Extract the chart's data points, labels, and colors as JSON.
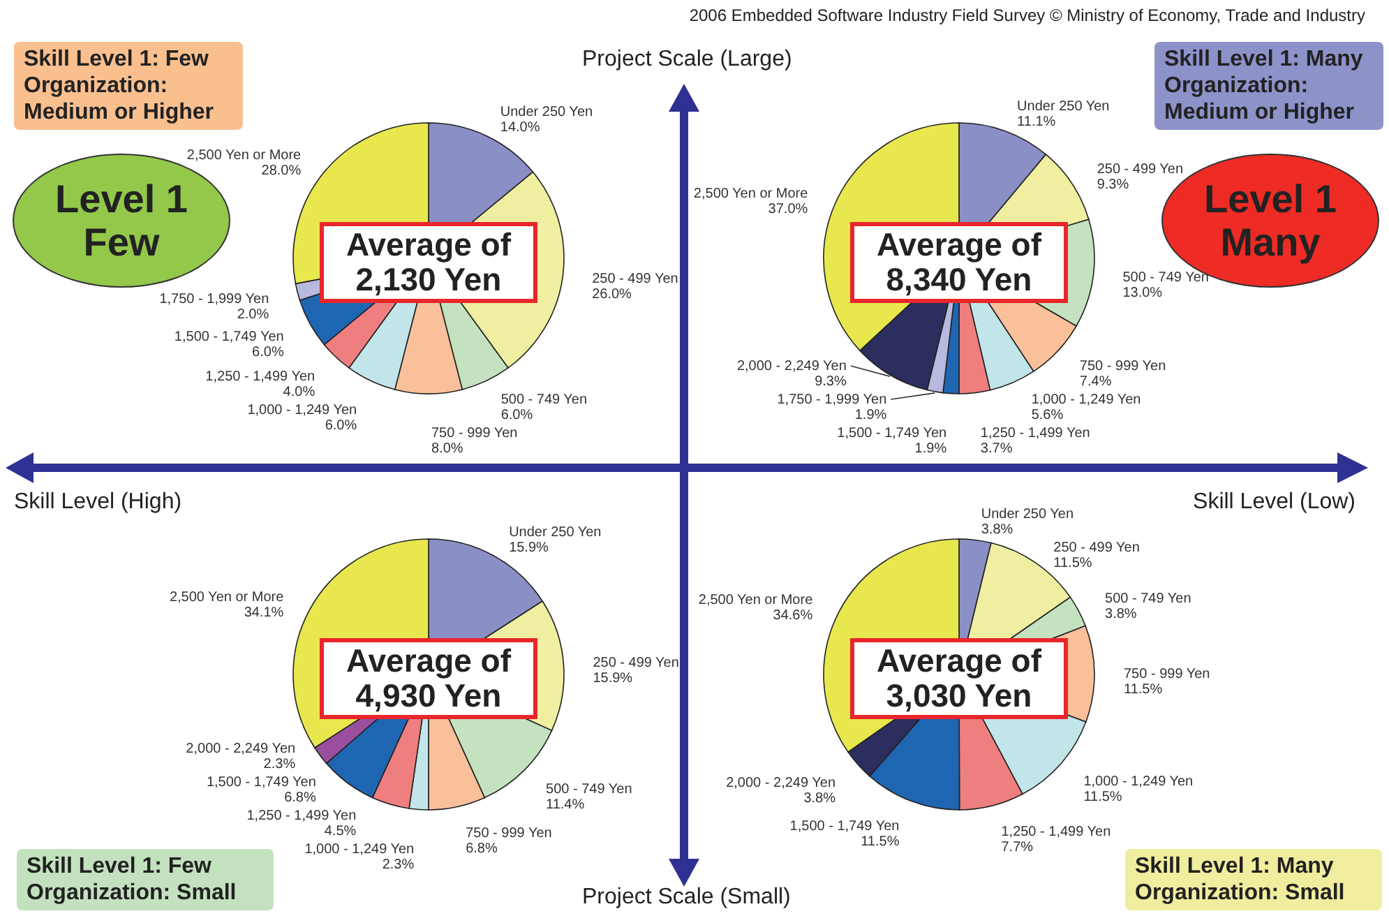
{
  "chart_data": [
    {
      "type": "pie",
      "title": "Average of 2,130 Yen",
      "annotations": [
        "Skill Level 1: Few Organization: Medium or Higher",
        "Level 1 Few"
      ],
      "categories": [
        "Under 250 Yen",
        "250 - 499 Yen",
        "500 - 749 Yen",
        "750 - 999 Yen",
        "1,000 - 1,249 Yen",
        "1,250 - 1,499 Yen",
        "1,500 - 1,749 Yen",
        "1,750 - 1,999 Yen",
        "2,500 Yen or More"
      ],
      "values": [
        14.0,
        26.0,
        6.0,
        8.0,
        6.0,
        4.0,
        6.0,
        2.0,
        28.0
      ],
      "value_labels": [
        "14.0%",
        "26.0%",
        "6.0%",
        "8.0%",
        "6.0%",
        "4.0%",
        "6.0%",
        "2.0%",
        "28.0%"
      ],
      "colors": [
        "#8a8fc6",
        "#f0eea0",
        "#c4e2c0",
        "#f9c09a",
        "#c2e5ea",
        "#ef7e7e",
        "#1f66b2",
        "#b8b9de",
        "#e8e74e"
      ]
    },
    {
      "type": "pie",
      "title": "Average of 8,340 Yen",
      "annotations": [
        "Skill Level 1: Many Organization: Medium or Higher",
        "Level 1 Many"
      ],
      "categories": [
        "Under 250 Yen",
        "250 - 499 Yen",
        "500 - 749 Yen",
        "750 - 999 Yen",
        "1,000 - 1,249 Yen",
        "1,250 - 1,499 Yen",
        "1,500 - 1,749 Yen",
        "1,750 - 1,999 Yen",
        "2,000 - 2,249 Yen",
        "2,500 Yen or More"
      ],
      "values": [
        11.1,
        9.3,
        13.0,
        7.4,
        5.6,
        3.7,
        1.9,
        1.9,
        9.3,
        37.0
      ],
      "value_labels": [
        "11.1%",
        "9.3%",
        "13.0%",
        "7.4%",
        "5.6%",
        "3.7%",
        "1.9%",
        "1.9%",
        "9.3%",
        "37.0%"
      ],
      "colors": [
        "#8a8fc6",
        "#f0eea0",
        "#c4e2c0",
        "#f9c09a",
        "#c2e5ea",
        "#ef7e7e",
        "#1f66b2",
        "#b8b9de",
        "#2c2e5e",
        "#e8e74e"
      ]
    },
    {
      "type": "pie",
      "title": "Average of 4,930 Yen",
      "annotations": [
        "Skill Level 1: Few Organization: Small"
      ],
      "categories": [
        "Under 250 Yen",
        "250 - 499 Yen",
        "500 - 749 Yen",
        "750 - 999 Yen",
        "1,000 - 1,249 Yen",
        "1,250 - 1,499 Yen",
        "1,500 - 1,749 Yen",
        "2,000 - 2,249 Yen",
        "2,500 Yen or More"
      ],
      "values": [
        15.9,
        15.9,
        11.4,
        6.8,
        2.3,
        4.5,
        6.8,
        2.3,
        34.1
      ],
      "value_labels": [
        "15.9%",
        "15.9%",
        "11.4%",
        "6.8%",
        "2.3%",
        "4.5%",
        "6.8%",
        "2.3%",
        "34.1%"
      ],
      "colors": [
        "#8a8fc6",
        "#f0eea0",
        "#c4e2c0",
        "#f9c09a",
        "#c2e5ea",
        "#ef7e7e",
        "#1f66b2",
        "#9a4f9e",
        "#e8e74e"
      ]
    },
    {
      "type": "pie",
      "title": "Average of 3,030 Yen",
      "annotations": [
        "Skill Level 1: Many Organization: Small"
      ],
      "categories": [
        "Under 250 Yen",
        "250 - 499 Yen",
        "500 - 749 Yen",
        "750 - 999 Yen",
        "1,000 - 1,249 Yen",
        "1,250 - 1,499 Yen",
        "1,500 - 1,749 Yen",
        "2,000 - 2,249 Yen",
        "2,500 Yen or More"
      ],
      "values": [
        3.8,
        11.5,
        3.8,
        11.5,
        11.5,
        7.7,
        11.5,
        3.8,
        34.6
      ],
      "value_labels": [
        "3.8%",
        "11.5%",
        "3.8%",
        "11.5%",
        "11.5%",
        "7.7%",
        "11.5%",
        "3.8%",
        "34.6%"
      ],
      "colors": [
        "#8a8fc6",
        "#f0eea0",
        "#c4e2c0",
        "#f9c09a",
        "#c2e5ea",
        "#ef7e7e",
        "#1f66b2",
        "#2c2e5e",
        "#e8e74e"
      ]
    },
    {
      "type": "other",
      "annotations": [
        "2006 Embedded Software Industry Field Survey © Ministry of Economy, Trade and Industry",
        "Project Scale (Large)",
        "Project Scale (Small)",
        "Skill Level (High)",
        "Skill Level (Low)"
      ]
    }
  ]
}
